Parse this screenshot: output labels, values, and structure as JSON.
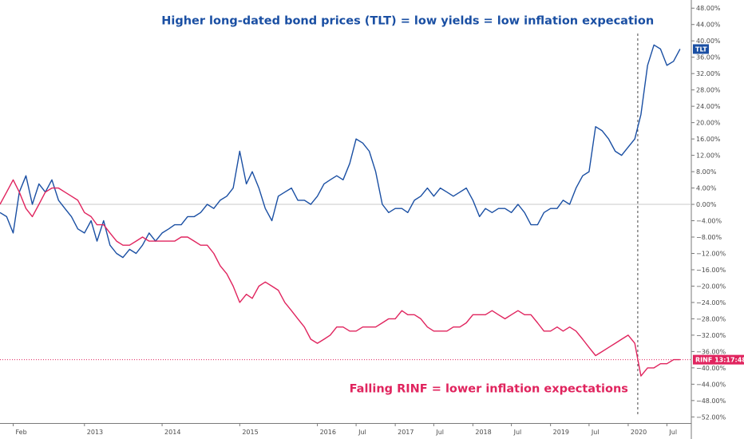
{
  "chart_data": {
    "type": "line",
    "title": "",
    "xlabel": "",
    "ylabel": "",
    "y_unit": "%",
    "ylim": [
      -53.5,
      50
    ],
    "y_ticks": [
      48,
      44,
      40,
      36,
      32,
      28,
      24,
      20,
      16,
      12,
      8,
      4,
      0,
      -4,
      -8,
      -12,
      -16,
      -20,
      -24,
      -28,
      -32,
      -36,
      -40,
      -44,
      -48,
      -52
    ],
    "y_tick_labels": [
      "48.00%",
      "44.00%",
      "40.00%",
      "36.00%",
      "32.00%",
      "28.00%",
      "24.00%",
      "20.00%",
      "16.00%",
      "12.00%",
      "8.00%",
      "4.00%",
      "0.00%",
      "−4.00%",
      "−8.00%",
      "−12.00%",
      "−16.00%",
      "−20.00%",
      "−24.00%",
      "−28.00%",
      "−32.00%",
      "−36.00%",
      "−40.00%",
      "−44.00%",
      "−48.00%",
      "−52.00%"
    ],
    "x_ticks": [
      {
        "label": "Feb",
        "date": "2012-02"
      },
      {
        "label": "2013",
        "date": "2013-01"
      },
      {
        "label": "2014",
        "date": "2014-01"
      },
      {
        "label": "2015",
        "date": "2015-01"
      },
      {
        "label": "2016",
        "date": "2016-01"
      },
      {
        "label": "Jul",
        "date": "2016-07"
      },
      {
        "label": "2017",
        "date": "2017-01"
      },
      {
        "label": "Jul",
        "date": "2017-07"
      },
      {
        "label": "2018",
        "date": "2018-01"
      },
      {
        "label": "Jul",
        "date": "2018-07"
      },
      {
        "label": "2019",
        "date": "2019-01"
      },
      {
        "label": "Jul",
        "date": "2019-07"
      },
      {
        "label": "2020",
        "date": "2020-01"
      },
      {
        "label": "Jul",
        "date": "2020-07"
      }
    ],
    "xlim": [
      "2011-12-01",
      "2020-10-20"
    ],
    "baseline": 0,
    "grid": false,
    "vertical_marker": {
      "date": "2020-02-15"
    },
    "series": [
      {
        "name": "TLT",
        "color": "#1a4fa3",
        "points": [
          [
            "2011-12-01",
            -2
          ],
          [
            "2012-01-01",
            -3
          ],
          [
            "2012-02-01",
            -7
          ],
          [
            "2012-03-01",
            3
          ],
          [
            "2012-04-01",
            7
          ],
          [
            "2012-05-01",
            0
          ],
          [
            "2012-06-01",
            5
          ],
          [
            "2012-07-01",
            3
          ],
          [
            "2012-08-01",
            6
          ],
          [
            "2012-09-01",
            1
          ],
          [
            "2012-10-01",
            -1
          ],
          [
            "2012-11-01",
            -3
          ],
          [
            "2012-12-01",
            -6
          ],
          [
            "2013-01-01",
            -7
          ],
          [
            "2013-02-01",
            -4
          ],
          [
            "2013-03-01",
            -9
          ],
          [
            "2013-04-01",
            -4
          ],
          [
            "2013-05-01",
            -10
          ],
          [
            "2013-06-01",
            -12
          ],
          [
            "2013-07-01",
            -13
          ],
          [
            "2013-08-01",
            -11
          ],
          [
            "2013-09-01",
            -12
          ],
          [
            "2013-10-01",
            -10
          ],
          [
            "2013-11-01",
            -7
          ],
          [
            "2013-12-01",
            -9
          ],
          [
            "2014-01-01",
            -7
          ],
          [
            "2014-02-01",
            -6
          ],
          [
            "2014-03-01",
            -5
          ],
          [
            "2014-04-01",
            -5
          ],
          [
            "2014-05-01",
            -3
          ],
          [
            "2014-06-01",
            -3
          ],
          [
            "2014-07-01",
            -2
          ],
          [
            "2014-08-01",
            0
          ],
          [
            "2014-09-01",
            -1
          ],
          [
            "2014-10-01",
            1
          ],
          [
            "2014-11-01",
            2
          ],
          [
            "2014-12-01",
            4
          ],
          [
            "2015-01-01",
            13
          ],
          [
            "2015-02-01",
            5
          ],
          [
            "2015-03-01",
            8
          ],
          [
            "2015-04-01",
            4
          ],
          [
            "2015-05-01",
            -1
          ],
          [
            "2015-06-01",
            -4
          ],
          [
            "2015-07-01",
            2
          ],
          [
            "2015-08-01",
            3
          ],
          [
            "2015-09-01",
            4
          ],
          [
            "2015-10-01",
            1
          ],
          [
            "2015-11-01",
            1
          ],
          [
            "2015-12-01",
            0
          ],
          [
            "2016-01-01",
            2
          ],
          [
            "2016-02-01",
            5
          ],
          [
            "2016-03-01",
            6
          ],
          [
            "2016-04-01",
            7
          ],
          [
            "2016-05-01",
            6
          ],
          [
            "2016-06-01",
            10
          ],
          [
            "2016-07-01",
            16
          ],
          [
            "2016-08-01",
            15
          ],
          [
            "2016-09-01",
            13
          ],
          [
            "2016-10-01",
            8
          ],
          [
            "2016-11-01",
            0
          ],
          [
            "2016-12-01",
            -2
          ],
          [
            "2017-01-01",
            -1
          ],
          [
            "2017-02-01",
            -1
          ],
          [
            "2017-03-01",
            -2
          ],
          [
            "2017-04-01",
            1
          ],
          [
            "2017-05-01",
            2
          ],
          [
            "2017-06-01",
            4
          ],
          [
            "2017-07-01",
            2
          ],
          [
            "2017-08-01",
            4
          ],
          [
            "2017-09-01",
            3
          ],
          [
            "2017-10-01",
            2
          ],
          [
            "2017-11-01",
            3
          ],
          [
            "2017-12-01",
            4
          ],
          [
            "2018-01-01",
            1
          ],
          [
            "2018-02-01",
            -3
          ],
          [
            "2018-03-01",
            -1
          ],
          [
            "2018-04-01",
            -2
          ],
          [
            "2018-05-01",
            -1
          ],
          [
            "2018-06-01",
            -1
          ],
          [
            "2018-07-01",
            -2
          ],
          [
            "2018-08-01",
            0
          ],
          [
            "2018-09-01",
            -2
          ],
          [
            "2018-10-01",
            -5
          ],
          [
            "2018-11-01",
            -5
          ],
          [
            "2018-12-01",
            -2
          ],
          [
            "2019-01-01",
            -1
          ],
          [
            "2019-02-01",
            -1
          ],
          [
            "2019-03-01",
            1
          ],
          [
            "2019-04-01",
            0
          ],
          [
            "2019-05-01",
            4
          ],
          [
            "2019-06-01",
            7
          ],
          [
            "2019-07-01",
            8
          ],
          [
            "2019-08-01",
            19
          ],
          [
            "2019-09-01",
            18
          ],
          [
            "2019-10-01",
            16
          ],
          [
            "2019-11-01",
            13
          ],
          [
            "2019-12-01",
            12
          ],
          [
            "2020-01-01",
            14
          ],
          [
            "2020-02-01",
            16
          ],
          [
            "2020-03-01",
            22
          ],
          [
            "2020-04-01",
            34
          ],
          [
            "2020-05-01",
            39
          ],
          [
            "2020-06-01",
            38
          ],
          [
            "2020-07-01",
            34
          ],
          [
            "2020-08-01",
            35
          ],
          [
            "2020-09-01",
            38
          ]
        ]
      },
      {
        "name": "RINF",
        "color": "#e0245e",
        "points": [
          [
            "2011-12-01",
            0
          ],
          [
            "2012-01-01",
            3
          ],
          [
            "2012-02-01",
            6
          ],
          [
            "2012-03-01",
            3
          ],
          [
            "2012-04-01",
            -1
          ],
          [
            "2012-05-01",
            -3
          ],
          [
            "2012-06-01",
            0
          ],
          [
            "2012-07-01",
            3
          ],
          [
            "2012-08-01",
            4
          ],
          [
            "2012-09-01",
            4
          ],
          [
            "2012-10-01",
            3
          ],
          [
            "2012-11-01",
            2
          ],
          [
            "2012-12-01",
            1
          ],
          [
            "2013-01-01",
            -2
          ],
          [
            "2013-02-01",
            -3
          ],
          [
            "2013-03-01",
            -5
          ],
          [
            "2013-04-01",
            -5
          ],
          [
            "2013-05-01",
            -7
          ],
          [
            "2013-06-01",
            -9
          ],
          [
            "2013-07-01",
            -10
          ],
          [
            "2013-08-01",
            -10
          ],
          [
            "2013-09-01",
            -9
          ],
          [
            "2013-10-01",
            -8
          ],
          [
            "2013-11-01",
            -9
          ],
          [
            "2013-12-01",
            -9
          ],
          [
            "2014-01-01",
            -9
          ],
          [
            "2014-02-01",
            -9
          ],
          [
            "2014-03-01",
            -9
          ],
          [
            "2014-04-01",
            -8
          ],
          [
            "2014-05-01",
            -8
          ],
          [
            "2014-06-01",
            -9
          ],
          [
            "2014-07-01",
            -10
          ],
          [
            "2014-08-01",
            -10
          ],
          [
            "2014-09-01",
            -12
          ],
          [
            "2014-10-01",
            -15
          ],
          [
            "2014-11-01",
            -17
          ],
          [
            "2014-12-01",
            -20
          ],
          [
            "2015-01-01",
            -24
          ],
          [
            "2015-02-01",
            -22
          ],
          [
            "2015-03-01",
            -23
          ],
          [
            "2015-04-01",
            -20
          ],
          [
            "2015-05-01",
            -19
          ],
          [
            "2015-06-01",
            -20
          ],
          [
            "2015-07-01",
            -21
          ],
          [
            "2015-08-01",
            -24
          ],
          [
            "2015-09-01",
            -26
          ],
          [
            "2015-10-01",
            -28
          ],
          [
            "2015-11-01",
            -30
          ],
          [
            "2015-12-01",
            -33
          ],
          [
            "2016-01-01",
            -34
          ],
          [
            "2016-02-01",
            -33
          ],
          [
            "2016-03-01",
            -32
          ],
          [
            "2016-04-01",
            -30
          ],
          [
            "2016-05-01",
            -30
          ],
          [
            "2016-06-01",
            -31
          ],
          [
            "2016-07-01",
            -31
          ],
          [
            "2016-08-01",
            -30
          ],
          [
            "2016-09-01",
            -30
          ],
          [
            "2016-10-01",
            -30
          ],
          [
            "2016-11-01",
            -29
          ],
          [
            "2016-12-01",
            -28
          ],
          [
            "2017-01-01",
            -28
          ],
          [
            "2017-02-01",
            -26
          ],
          [
            "2017-03-01",
            -27
          ],
          [
            "2017-04-01",
            -27
          ],
          [
            "2017-05-01",
            -28
          ],
          [
            "2017-06-01",
            -30
          ],
          [
            "2017-07-01",
            -31
          ],
          [
            "2017-08-01",
            -31
          ],
          [
            "2017-09-01",
            -31
          ],
          [
            "2017-10-01",
            -30
          ],
          [
            "2017-11-01",
            -30
          ],
          [
            "2017-12-01",
            -29
          ],
          [
            "2018-01-01",
            -27
          ],
          [
            "2018-02-01",
            -27
          ],
          [
            "2018-03-01",
            -27
          ],
          [
            "2018-04-01",
            -26
          ],
          [
            "2018-05-01",
            -27
          ],
          [
            "2018-06-01",
            -28
          ],
          [
            "2018-07-01",
            -27
          ],
          [
            "2018-08-01",
            -26
          ],
          [
            "2018-09-01",
            -27
          ],
          [
            "2018-10-01",
            -27
          ],
          [
            "2018-11-01",
            -29
          ],
          [
            "2018-12-01",
            -31
          ],
          [
            "2019-01-01",
            -31
          ],
          [
            "2019-02-01",
            -30
          ],
          [
            "2019-03-01",
            -31
          ],
          [
            "2019-04-01",
            -30
          ],
          [
            "2019-05-01",
            -31
          ],
          [
            "2019-06-01",
            -33
          ],
          [
            "2019-07-01",
            -35
          ],
          [
            "2019-08-01",
            -37
          ],
          [
            "2019-09-01",
            -36
          ],
          [
            "2019-10-01",
            -35
          ],
          [
            "2019-11-01",
            -34
          ],
          [
            "2019-12-01",
            -33
          ],
          [
            "2020-01-01",
            -32
          ],
          [
            "2020-02-01",
            -34
          ],
          [
            "2020-03-01",
            -42
          ],
          [
            "2020-04-01",
            -40
          ],
          [
            "2020-05-01",
            -40
          ],
          [
            "2020-06-01",
            -39
          ],
          [
            "2020-07-01",
            -39
          ],
          [
            "2020-08-01",
            -38
          ],
          [
            "2020-09-01",
            -38
          ]
        ]
      }
    ],
    "price_tags": [
      {
        "series": "TLT",
        "text": "TLT",
        "color": "#1a4fa3"
      },
      {
        "series": "RINF",
        "text": "RINF",
        "time_text": "13:17:48",
        "color": "#e0245e"
      }
    ],
    "annotations": [
      {
        "text": "Higher long-dated bond prices (TLT) = low yields = low inflation expecation",
        "color": "#1a4fa3",
        "anchor_date": "2020-05-01",
        "align": "end",
        "y": 44
      },
      {
        "text": "Falling RINF = lower inflation expectations",
        "color": "#e0245e",
        "anchor_date": "2020-01-01",
        "align": "end",
        "y": -46
      }
    ]
  }
}
